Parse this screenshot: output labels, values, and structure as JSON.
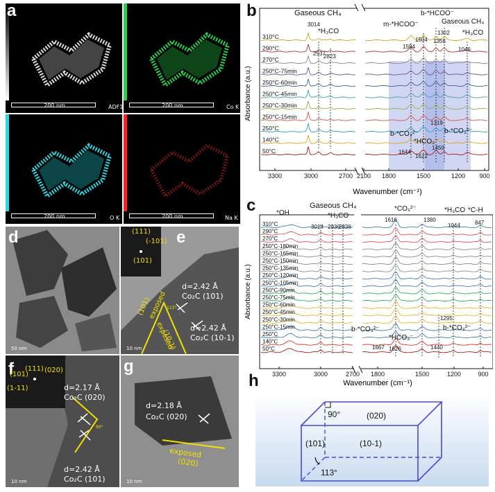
{
  "panel_a": {
    "letter": "a",
    "maps": [
      {
        "tag": "ADF1",
        "scale": "200 nm",
        "color": "#e6e6e6",
        "bar": "#ffffff"
      },
      {
        "tag": "Co K",
        "scale": "200 nm",
        "color": "#27d24a",
        "bar": "#27d24a"
      },
      {
        "tag": "O K",
        "scale": "200 nm",
        "color": "#29d8e0",
        "bar": "#29d8e0"
      },
      {
        "tag": "Na K",
        "scale": "200 nm",
        "color": "#ff2020",
        "bar": "#ff2020"
      }
    ]
  },
  "panel_b": {
    "letter": "b",
    "ylabel": "Absorbance (a.u.)",
    "xlabel": "Wavenumber (cm⁻¹)",
    "ticks_left": [
      "3300",
      "3000",
      "2700",
      "2100"
    ],
    "ticks_right": [
      "1800",
      "1500",
      "1200",
      "900"
    ],
    "traces": [
      "310°C",
      "290°C",
      "270°C",
      "250°C-75min",
      "250°C-60min",
      "250°C-45min",
      "250°C-30min",
      "250°C-15min",
      "250°C",
      "140°C",
      "50°C"
    ],
    "colors": [
      "#c9a51c",
      "#b03030",
      "#8a8a8a",
      "#6b4e9a",
      "#3a5fa0",
      "#3aa0b0",
      "#8ab83a",
      "#e0503a",
      "#2aa0c8",
      "#e0a020",
      "#b01818"
    ],
    "annotations": [
      "Gaseous CH₄",
      "3014",
      "*H₃CO",
      "2937",
      "2823",
      "b-*HCOO⁻",
      "m-*HCOO⁻",
      "Gaseous CH₄",
      "1594",
      "1504",
      "1356",
      "1302",
      "*H₃CO",
      "1046",
      "1319",
      "b-*CO₃²⁻",
      "*HCO₃⁻",
      "b-*CO₃²⁻",
      "1644",
      "1622",
      "1450"
    ]
  },
  "panel_c": {
    "letter": "c",
    "ylabel": "Absorbance (a.u.)",
    "xlabel": "Wavenumber (cm⁻¹)",
    "ticks_left": [
      "3300",
      "3000",
      "2700"
    ],
    "ticks_right": [
      "1800",
      "1500",
      "1200",
      "900"
    ],
    "traces": [
      "310°C",
      "290°C",
      "270°C",
      "250°C-180min",
      "250°C-165min",
      "250°C-150min",
      "250°C-135min",
      "250°C-120min",
      "250°C-105min",
      "250°C-90min",
      "250°C-75min",
      "250°C-60min",
      "250°C-45min",
      "250°C-30min",
      "250°C-15min",
      "250°C",
      "140°C",
      "50°C"
    ],
    "colors": [
      "#3a7fc0",
      "#e05050",
      "#e05050",
      "#8a8a8a",
      "#8a8a8a",
      "#8a8a8a",
      "#8a8a8a",
      "#3a7fc0",
      "#3a7fc0",
      "#2ab060",
      "#2ab060",
      "#f0b020",
      "#f0b020",
      "#f0b020",
      "#3a7fc0",
      "#3a7fc0",
      "#e03030",
      "#b01818"
    ],
    "annotations": [
      "*OH",
      "Gaseous CH₄",
      "3014",
      "*H₃CO",
      "2930",
      "2836",
      "*CO₃²⁻",
      "1616",
      "1380",
      "*H₃CO",
      "1044",
      "*C-H",
      "847",
      "1295",
      "b-*CO₃²⁻",
      "b-*CO₃²⁻",
      "*HCO₃⁻",
      "1667",
      "1626",
      "1440"
    ]
  },
  "panel_d": {
    "letter": "d",
    "scale": "50 nm"
  },
  "panel_e": {
    "letter": "e",
    "fft": [
      "(111)",
      "(-101)",
      "(101)"
    ],
    "d1": "d=2.42 Å",
    "d1b": "Co₂C (101)",
    "d2": "d=2.42 Å",
    "d2b": "Co₂C (10-1)",
    "exposed1": "(101)",
    "exposed1w": "exposed",
    "exposed2": "exposed",
    "exposed2w": "(10-1)",
    "angle": "113°",
    "scale": "10 nm"
  },
  "panel_f": {
    "letter": "f",
    "fft": [
      "(101)",
      "(111)",
      "(020)",
      "(1-11)"
    ],
    "d1": "d=2.17 Å",
    "d1b": "Co₂C (020)",
    "d2": "d=2.42 Å",
    "d2b": "Co₂C (101)",
    "angle": "90°",
    "scale": "10 nm"
  },
  "panel_g": {
    "letter": "g",
    "d1": "d=2.18 Å",
    "d1b": "Co₂C (020)",
    "exposed": "exposed",
    "exposedb": "(020)",
    "scale": "10 nm"
  },
  "panel_h": {
    "letter": "h",
    "angle90": "90°",
    "face020": "(020)",
    "face101": "(101)",
    "face10m1": "(10-1)",
    "angle113": "113°"
  }
}
